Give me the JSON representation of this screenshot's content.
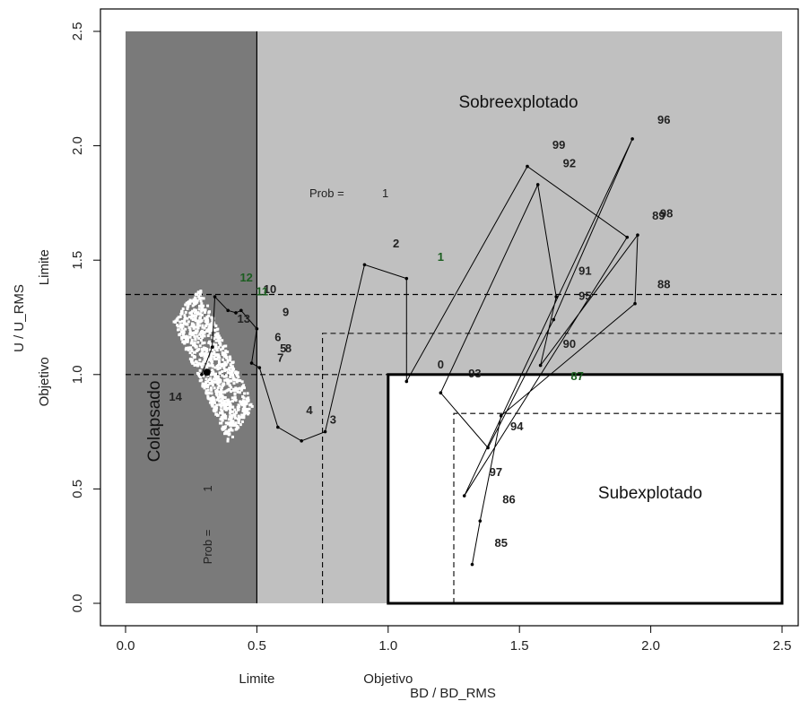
{
  "chart_data": {
    "type": "scatter",
    "xlim": [
      0,
      2.5
    ],
    "ylim": [
      0,
      2.5
    ],
    "x_ticks": [
      "0.0",
      "0.5",
      "1.0",
      "1.5",
      "2.0",
      "2.5"
    ],
    "y_ticks": [
      "0.0",
      "0.5",
      "1.0",
      "1.5",
      "2.0",
      "2.5"
    ],
    "xlabel": "BD / BD_RMS",
    "ylabel": "U / U_RMS",
    "x_ref_labels": [
      {
        "x": 0.5,
        "label": "Limite"
      },
      {
        "x": 1.0,
        "label": "Objetivo"
      }
    ],
    "y_ref_labels": [
      {
        "y": 1.0,
        "label": "Objetivo"
      },
      {
        "y": 1.5,
        "label": "Limite"
      }
    ],
    "zones": {
      "collapsed": {
        "label": "Colapsado",
        "x": [
          0,
          0.5
        ],
        "y": [
          0,
          2.5
        ],
        "color": "#7a7a7a"
      },
      "overexploited": {
        "label": "Sobreexplotado",
        "x": [
          0.5,
          2.5
        ],
        "y": [
          0,
          2.5
        ],
        "color": "#c0c0c0"
      },
      "underexploited": {
        "label": "Subexplotado",
        "x": [
          1.0,
          2.5
        ],
        "y": [
          0,
          1.0
        ],
        "color": "#ffffff"
      }
    },
    "h_dashed_lines": [
      1.0,
      1.35
    ],
    "v_dashed_lines": [
      0.5
    ],
    "projection_box": {
      "x": [
        0.75,
        2.5
      ],
      "y": [
        0,
        1.18
      ]
    },
    "target_box": {
      "x": [
        1.25,
        2.5
      ],
      "y": [
        0,
        0.83
      ]
    },
    "prob_x": {
      "label": "Prob =",
      "value": "1"
    },
    "prob_y": {
      "label": "Prob =",
      "value": "1"
    },
    "current_point": {
      "x": 0.31,
      "y": 1.01
    },
    "trajectory": [
      {
        "label": "85",
        "x": 1.32,
        "y": 0.17,
        "lx": 1.43,
        "ly": 0.26,
        "color": "#222222"
      },
      {
        "label": "86",
        "x": 1.35,
        "y": 0.36,
        "lx": 1.46,
        "ly": 0.45,
        "color": "#222222"
      },
      {
        "label": "87",
        "x": 1.43,
        "y": 0.82,
        "lx": 1.72,
        "ly": 0.99,
        "color": "#1b5e20"
      },
      {
        "label": "88",
        "x": 1.94,
        "y": 1.31,
        "lx": 2.05,
        "ly": 1.39,
        "color": "#222222"
      },
      {
        "label": "89",
        "x": 1.95,
        "y": 1.61,
        "lx": 2.03,
        "ly": 1.69,
        "color": "#222222"
      },
      {
        "label": "90",
        "x": 1.58,
        "y": 1.04,
        "lx": 1.69,
        "ly": 1.13,
        "color": "#222222"
      },
      {
        "label": "91",
        "x": 1.64,
        "y": 1.34,
        "lx": 1.75,
        "ly": 1.45,
        "color": "#222222"
      },
      {
        "label": "92",
        "x": 1.57,
        "y": 1.83,
        "lx": 1.69,
        "ly": 1.92,
        "color": "#222222"
      },
      {
        "label": "93",
        "x": 1.2,
        "y": 0.92,
        "lx": 1.33,
        "ly": 1.0,
        "color": "#222222"
      },
      {
        "label": "94",
        "x": 1.38,
        "y": 0.68,
        "lx": 1.49,
        "ly": 0.77,
        "color": "#222222"
      },
      {
        "label": "95",
        "x": 1.63,
        "y": 1.24,
        "lx": 1.75,
        "ly": 1.34,
        "color": "#222222"
      },
      {
        "label": "96",
        "x": 1.93,
        "y": 2.03,
        "lx": 2.05,
        "ly": 2.11,
        "color": "#222222"
      },
      {
        "label": "97",
        "x": 1.29,
        "y": 0.47,
        "lx": 1.41,
        "ly": 0.57,
        "color": "#222222"
      },
      {
        "label": "98",
        "x": 1.91,
        "y": 1.6,
        "lx": 2.06,
        "ly": 1.7,
        "color": "#222222"
      },
      {
        "label": "99",
        "x": 1.53,
        "y": 1.91,
        "lx": 1.65,
        "ly": 2.0,
        "color": "#222222"
      },
      {
        "label": "0",
        "x": 1.07,
        "y": 0.97,
        "lx": 1.2,
        "ly": 1.04,
        "color": "#222222"
      },
      {
        "label": "1",
        "x": 1.07,
        "y": 1.42,
        "lx": 1.2,
        "ly": 1.51,
        "color": "#1b5e20"
      },
      {
        "label": "2",
        "x": 0.91,
        "y": 1.48,
        "lx": 1.03,
        "ly": 1.57,
        "color": "#222222"
      },
      {
        "label": "3",
        "x": 0.76,
        "y": 0.75,
        "lx": 0.79,
        "ly": 0.8,
        "color": "#222222"
      },
      {
        "label": "4",
        "x": 0.67,
        "y": 0.71,
        "lx": 0.7,
        "ly": 0.84,
        "color": "#222222"
      },
      {
        "label": "5",
        "x": 0.58,
        "y": 0.77,
        "lx": 0.6,
        "ly": 1.11,
        "color": "#222222"
      },
      {
        "label": "6",
        "x": 0.51,
        "y": 1.03,
        "lx": 0.58,
        "ly": 1.16,
        "color": "#222222"
      },
      {
        "label": "7",
        "x": 0.48,
        "y": 1.05,
        "lx": 0.59,
        "ly": 1.07,
        "color": "#222222"
      },
      {
        "label": "8",
        "x": 0.5,
        "y": 1.2,
        "lx": 0.62,
        "ly": 1.11,
        "color": "#222222"
      },
      {
        "label": "9",
        "x": 0.44,
        "y": 1.28,
        "lx": 0.61,
        "ly": 1.27,
        "color": "#222222"
      },
      {
        "label": "10",
        "x": 0.42,
        "y": 1.27,
        "lx": 0.55,
        "ly": 1.37,
        "color": "#222222"
      },
      {
        "label": "11",
        "x": 0.39,
        "y": 1.28,
        "lx": 0.52,
        "ly": 1.36,
        "color": "#1b5e20"
      },
      {
        "label": "12",
        "x": 0.34,
        "y": 1.34,
        "lx": 0.46,
        "ly": 1.42,
        "color": "#1b5e20"
      },
      {
        "label": "13",
        "x": 0.33,
        "y": 1.12,
        "lx": 0.45,
        "ly": 1.24,
        "color": "#222222"
      },
      {
        "label": "14",
        "x": 0.29,
        "y": 1.0,
        "lx": 0.19,
        "ly": 0.9,
        "color": "#222222"
      }
    ]
  }
}
